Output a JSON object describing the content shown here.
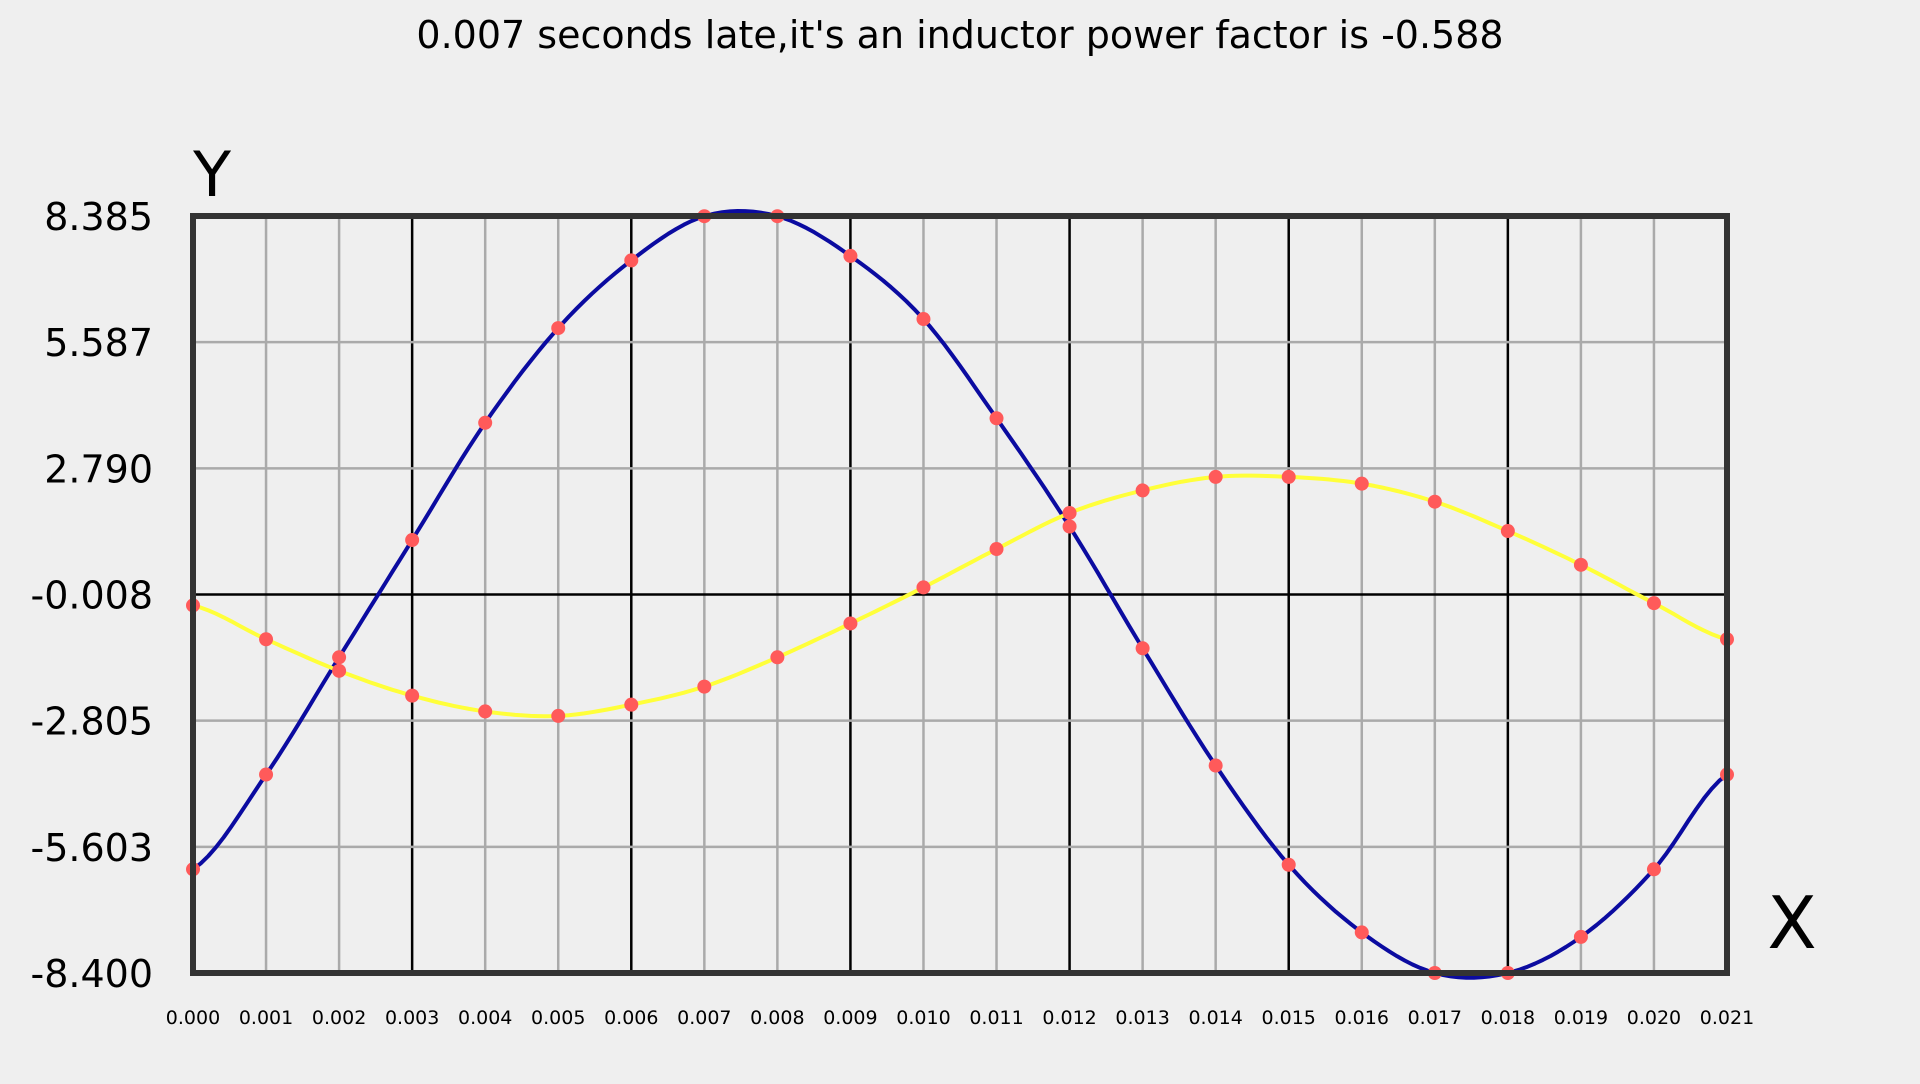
{
  "chart_data": {
    "type": "line",
    "title": "0.007 seconds late,it's an inductor  power factor is -0.588",
    "xlabel": "X",
    "ylabel": "Y",
    "xlim": [
      0.0,
      0.021
    ],
    "ylim": [
      -8.4,
      8.385
    ],
    "x_ticks": [
      "0.000",
      "0.001",
      "0.002",
      "0.003",
      "0.004",
      "0.005",
      "0.006",
      "0.007",
      "0.008",
      "0.009",
      "0.010",
      "0.011",
      "0.012",
      "0.013",
      "0.014",
      "0.015",
      "0.016",
      "0.017",
      "0.018",
      "0.019",
      "0.020",
      "0.021"
    ],
    "y_ticks": [
      "8.385",
      "5.587",
      "2.790",
      "-0.008",
      "-2.805",
      "-5.603",
      "-8.400"
    ],
    "grid": true,
    "legend": "none",
    "x": [
      0.0,
      0.001,
      0.002,
      0.003,
      0.004,
      0.005,
      0.006,
      0.007,
      0.008,
      0.009,
      0.01,
      0.011,
      0.012,
      0.013,
      0.014,
      0.015,
      0.016,
      0.017,
      0.018,
      0.019,
      0.02,
      0.021
    ],
    "series": [
      {
        "color": "#0b0ba0",
        "values": [
          -6.1,
          -4.0,
          -1.4,
          1.2,
          3.8,
          5.9,
          7.4,
          8.38,
          8.38,
          7.5,
          6.1,
          3.9,
          1.5,
          -1.2,
          -3.8,
          -6.0,
          -7.5,
          -8.4,
          -8.4,
          -7.6,
          -6.1,
          -4.0
        ]
      },
      {
        "color": "#ffff3a",
        "values": [
          -0.25,
          -1.0,
          -1.7,
          -2.25,
          -2.6,
          -2.7,
          -2.45,
          -2.05,
          -1.4,
          -0.65,
          0.15,
          1.0,
          1.8,
          2.3,
          2.6,
          2.6,
          2.45,
          2.05,
          1.4,
          0.65,
          -0.2,
          -1.0
        ]
      }
    ],
    "marker_color": "#ff5a5a",
    "axis_color": "#333333",
    "major_grid_color": "#000000",
    "minor_grid_color": "#aaaaaa"
  }
}
